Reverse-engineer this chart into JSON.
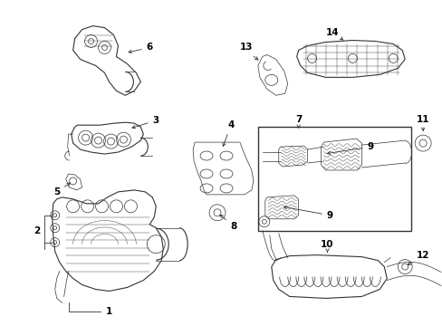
{
  "bg_color": "#ffffff",
  "line_color": "#333333",
  "label_color": "#000000",
  "figsize": [
    4.89,
    3.6
  ],
  "dpi": 100
}
